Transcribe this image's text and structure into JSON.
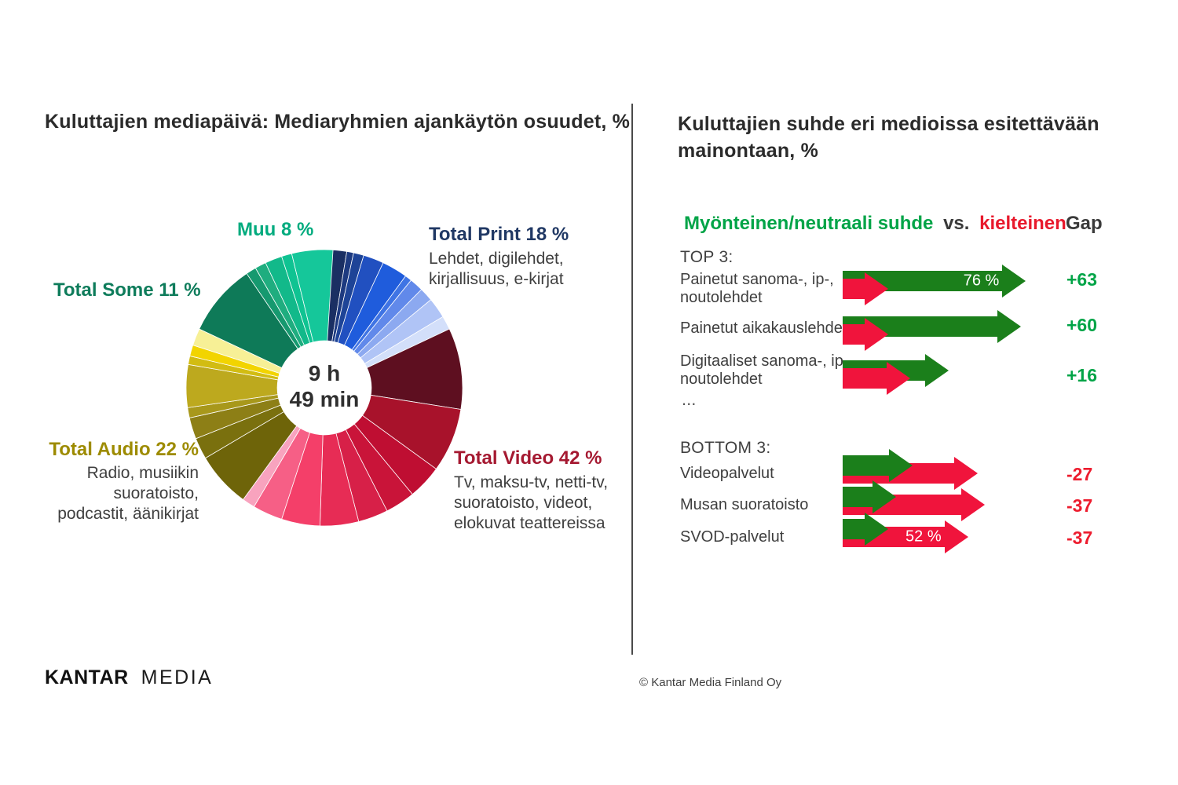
{
  "colors": {
    "arrow_green": "#1b7f1b",
    "arrow_red": "#f0143c",
    "legend_green": "#00a447",
    "legend_red": "#e8192c",
    "gap_green": "#00a447",
    "gap_red": "#ed1c2e",
    "divider": "#4a4a4a"
  },
  "left_panel": {
    "title": "Kuluttajien mediapäivä: Mediaryhmien ajankäytön osuudet, %",
    "donut_center": {
      "line1": "9 h",
      "line2": "49 min"
    },
    "labels": {
      "muu": {
        "text": "Muu 8 %",
        "color": "#00ab7e"
      },
      "some": {
        "text": "Total Some 11 %",
        "color": "#0e7c5b"
      },
      "print": {
        "title": "Total Print 18 %",
        "color": "#203864",
        "desc_line1": "Lehdet, digilehdet,",
        "desc_line2": "kirjallisuus, e-kirjat"
      },
      "audio": {
        "title": "Total Audio 22 %",
        "color": "#9d8b00",
        "desc_line1": "Radio, musiikin",
        "desc_line2": "suoratoisto,",
        "desc_line3": "podcastit, äänikirjat"
      },
      "video": {
        "title": "Total Video 42 %",
        "color": "#a51931",
        "desc_line1": "Tv, maksu-tv, netti-tv,",
        "desc_line2": "suoratoisto, videot,",
        "desc_line3": "elokuvat teattereissa"
      }
    }
  },
  "right_panel": {
    "title": "Kuluttajien suhde eri medioissa esitettävään mainontaan, %",
    "legend": {
      "positive": "Myönteinen/neutraali suhde",
      "vs": "vs.",
      "negative": "kielteinen"
    },
    "gap_header": "Gap",
    "top_heading": "TOP 3:",
    "bottom_heading": "BOTTOM 3:",
    "ellipsis": "..."
  },
  "footer": {
    "logo_primary": "KANTAR",
    "logo_secondary": "MEDIA",
    "copyright": "© Kantar Media Finland Oy"
  },
  "chart_data": [
    {
      "type": "pie",
      "subtype": "donut",
      "title": "Kuluttajien mediapäivä: Mediaryhmien ajankäytön osuudet, %",
      "center_total": "9 h 49 min",
      "groups": [
        {
          "name": "Total Print",
          "value": 18,
          "desc": "Lehdet, digilehdet, kirjallisuus, e-kirjat"
        },
        {
          "name": "Total Video",
          "value": 42,
          "desc": "Tv, maksu-tv, netti-tv, suoratoisto, videot, elokuvat teattereissa"
        },
        {
          "name": "Total Audio",
          "value": 22,
          "desc": "Radio, musiikin suoratoisto, podcastit, äänikirjat"
        },
        {
          "name": "Total Some",
          "value": 11
        },
        {
          "name": "Muu",
          "value": 8
        }
      ],
      "segments": [
        {
          "group": "print",
          "value": 2.6,
          "color": "#1a2f63"
        },
        {
          "group": "print",
          "value": 0.8,
          "color": "#1d3a80"
        },
        {
          "group": "print",
          "value": 1.2,
          "color": "#1e4497"
        },
        {
          "group": "print",
          "value": 2.4,
          "color": "#2150c0"
        },
        {
          "group": "print",
          "value": 3.0,
          "color": "#1f5cdc"
        },
        {
          "group": "print",
          "value": 0.8,
          "color": "#3f74e4"
        },
        {
          "group": "print",
          "value": 1.6,
          "color": "#6189ea"
        },
        {
          "group": "print",
          "value": 1.6,
          "color": "#8ca9f0"
        },
        {
          "group": "print",
          "value": 2.4,
          "color": "#b0c4f6"
        },
        {
          "group": "print",
          "value": 1.6,
          "color": "#d3dffa"
        },
        {
          "group": "video",
          "value": 9.5,
          "color": "#5e0f20"
        },
        {
          "group": "video",
          "value": 7.5,
          "color": "#a8122b"
        },
        {
          "group": "video",
          "value": 4.0,
          "color": "#bf0e32"
        },
        {
          "group": "video",
          "value": 3.5,
          "color": "#c91439"
        },
        {
          "group": "video",
          "value": 3.5,
          "color": "#d72048"
        },
        {
          "group": "video",
          "value": 4.5,
          "color": "#e72c55"
        },
        {
          "group": "video",
          "value": 4.5,
          "color": "#f43f69"
        },
        {
          "group": "video",
          "value": 3.5,
          "color": "#f65f86"
        },
        {
          "group": "video",
          "value": 1.5,
          "color": "#f8a3be"
        },
        {
          "group": "audio",
          "value": 6.5,
          "color": "#6e6409"
        },
        {
          "group": "audio",
          "value": 2.5,
          "color": "#7a700e"
        },
        {
          "group": "audio",
          "value": 2.5,
          "color": "#8d7f16"
        },
        {
          "group": "audio",
          "value": 1.2,
          "color": "#a8981b"
        },
        {
          "group": "audio",
          "value": 5.0,
          "color": "#bda91e"
        },
        {
          "group": "audio",
          "value": 1.0,
          "color": "#d2bc12"
        },
        {
          "group": "audio",
          "value": 1.3,
          "color": "#f2d400"
        },
        {
          "group": "audio",
          "value": 2.0,
          "color": "#f7f096"
        },
        {
          "group": "some",
          "value": 8.5,
          "color": "#0e7a58"
        },
        {
          "group": "some",
          "value": 1.2,
          "color": "#16996f"
        },
        {
          "group": "some",
          "value": 1.3,
          "color": "#1fad7f"
        },
        {
          "group": "muu",
          "value": 2.0,
          "color": "#12b98a"
        },
        {
          "group": "muu",
          "value": 1.2,
          "color": "#0fc392"
        },
        {
          "group": "muu",
          "value": 4.8,
          "color": "#15c79a"
        }
      ]
    },
    {
      "type": "bar",
      "subtype": "paired-arrows",
      "title": "Kuluttajien suhde eri medioissa esitettävään mainontaan, %",
      "legend_positive": "Myönteinen/neutraali suhde",
      "legend_negative": "kielteinen",
      "gap_header": "Gap",
      "sections": [
        {
          "heading": "TOP 3:",
          "rows": [
            {
              "label": "Painetut sanoma-, ip-, noutolehdet",
              "label_lines": [
                "Painetut sanoma-, ip-,",
                "noutolehdet"
              ],
              "positive": 76,
              "positive_label": "76 %",
              "negative": 13,
              "gap": "+63"
            },
            {
              "label": "Painetut aikakauslehdet",
              "label_lines": [
                "Painetut aikakauslehdet"
              ],
              "positive": 74,
              "negative": 14,
              "gap": "+60"
            },
            {
              "label": "Digitaaliset sanoma-, ip-, noutolehdet",
              "label_lines": [
                "Digitaaliset sanoma-, ip-,",
                "noutolehdet"
              ],
              "positive": 44,
              "negative": 28,
              "gap": "+16"
            }
          ]
        },
        {
          "heading": "BOTTOM 3:",
          "rows": [
            {
              "label": "Videopalvelut",
              "label_lines": [
                "Videopalvelut"
              ],
              "positive": 29,
              "negative": 56,
              "gap": "-27"
            },
            {
              "label": "Musan suoratoisto",
              "label_lines": [
                "Musan suoratoisto"
              ],
              "positive": 22,
              "negative": 59,
              "gap": "-37"
            },
            {
              "label": "SVOD-palvelut",
              "label_lines": [
                "SVOD-palvelut"
              ],
              "positive": 15,
              "negative": 52,
              "negative_label": "52 %",
              "gap": "-37"
            }
          ]
        }
      ]
    }
  ]
}
